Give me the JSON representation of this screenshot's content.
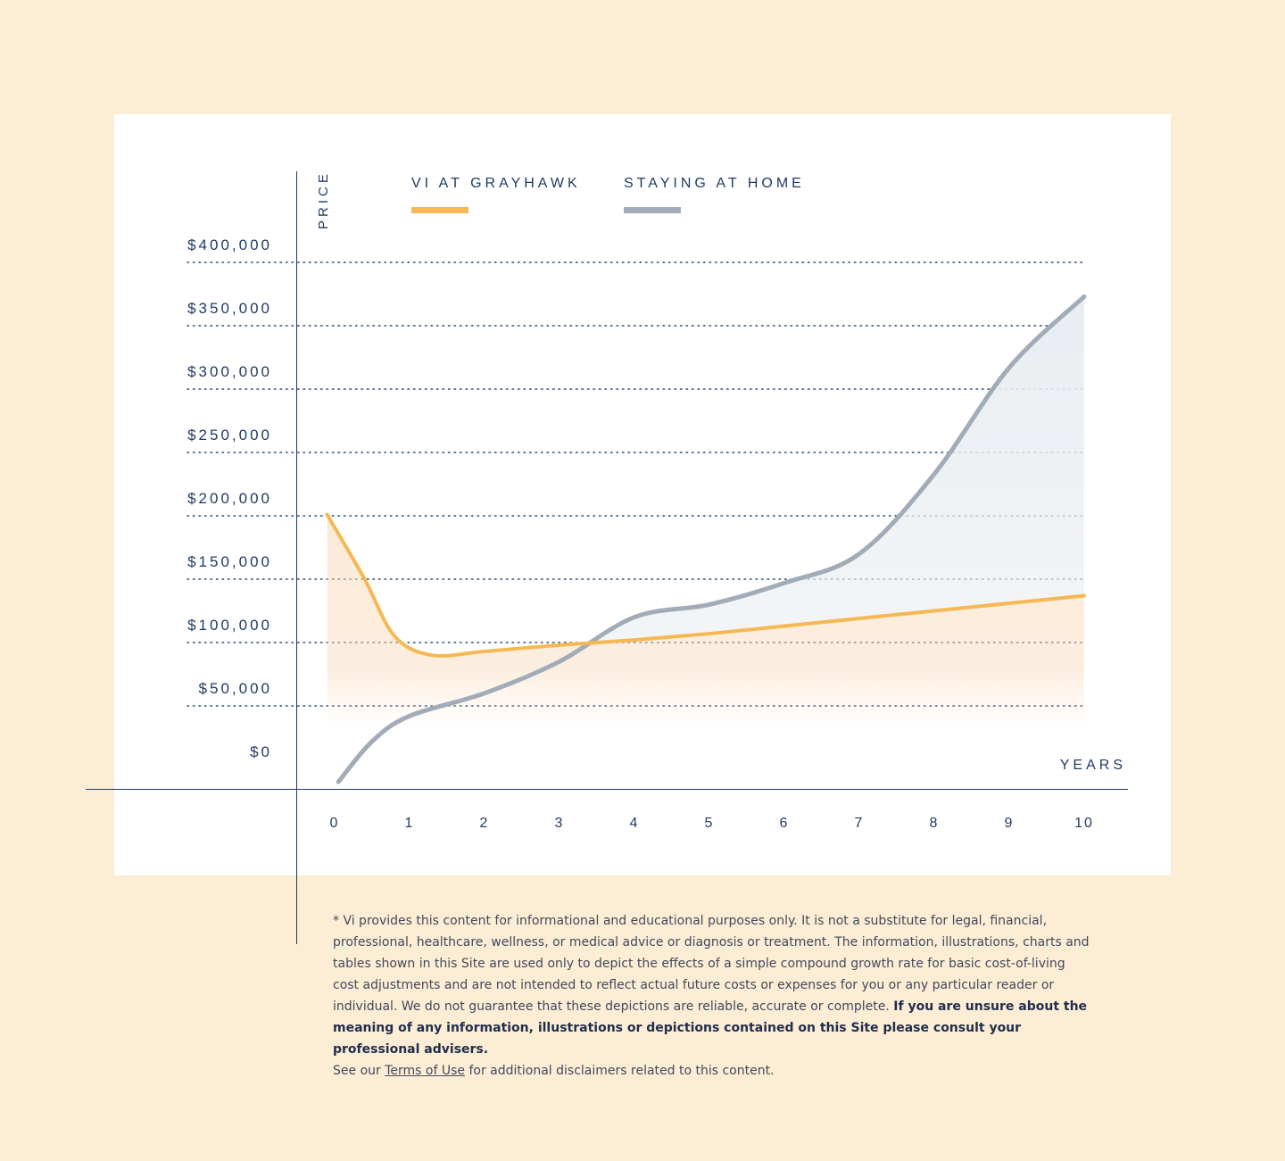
{
  "colors": {
    "page_background": "#FEEDD5",
    "card_background": "#FFFFFF",
    "axis_text": "#1F3B63",
    "vi_series": "#F6B853",
    "home_series": "#A2ACB8",
    "home_fill": "#E9EDF1",
    "vi_fill": "#F8D9B8"
  },
  "chart_data": {
    "type": "line",
    "ylabel": "PRICE",
    "xlabel": "YEARS",
    "ylim": [
      0,
      400000
    ],
    "xlim": [
      0,
      10
    ],
    "y_ticks": [
      {
        "value": 400000,
        "label": "$400,000"
      },
      {
        "value": 350000,
        "label": "$350,000"
      },
      {
        "value": 300000,
        "label": "$300,000"
      },
      {
        "value": 250000,
        "label": "$250,000"
      },
      {
        "value": 200000,
        "label": "$200,000"
      },
      {
        "value": 150000,
        "label": "$150,000"
      },
      {
        "value": 100000,
        "label": "$100,000"
      },
      {
        "value": 50000,
        "label": "$50,000"
      },
      {
        "value": 0,
        "label": "$0"
      }
    ],
    "x_ticks": [
      "0",
      "1",
      "2",
      "3",
      "4",
      "5",
      "6",
      "7",
      "8",
      "9",
      "10"
    ],
    "grid": "dotted horizontal",
    "legend_position": "top-left",
    "series": [
      {
        "name": "VI AT GRAYHAWK",
        "color": "#F6B853",
        "points": [
          [
            -0.1,
            201000
          ],
          [
            0.4,
            150000
          ],
          [
            0.8,
            105000
          ],
          [
            1.3,
            90000
          ],
          [
            2,
            93000
          ],
          [
            3,
            98000
          ],
          [
            4,
            102000
          ],
          [
            5,
            107000
          ],
          [
            6,
            113000
          ],
          [
            7,
            119000
          ],
          [
            8,
            125000
          ],
          [
            9,
            131000
          ],
          [
            10,
            137000
          ]
        ]
      },
      {
        "name": "STAYING AT HOME",
        "color": "#A2ACB8",
        "points": [
          [
            0.05,
            -10000
          ],
          [
            0.5,
            22000
          ],
          [
            1,
            42000
          ],
          [
            2,
            60000
          ],
          [
            3,
            85000
          ],
          [
            4,
            120000
          ],
          [
            5,
            130000
          ],
          [
            6,
            147000
          ],
          [
            7,
            170000
          ],
          [
            8,
            233000
          ],
          [
            9,
            317000
          ],
          [
            10,
            373000
          ]
        ]
      }
    ]
  },
  "disclaimer": {
    "text_part1": "* Vi provides this content for informational and educational purposes only. It is not a substitute for legal, financial, professional, healthcare, wellness, or medical advice or diagnosis or treatment. The information, illustrations, charts and tables shown in this Site are used only to depict the effects of a simple compound growth rate for basic cost-of-living cost adjustments and are not intended to reflect actual future costs or expenses for you or any particular reader or individual. We do not guarantee that these depictions are reliable, accurate or complete. ",
    "text_bold": "If you are unsure about the meaning of any information, illustrations or depictions contained on this Site please consult your professional advisers.",
    "see_our": "See our ",
    "terms_link": "Terms of Use",
    "suffix": " for additional disclaimers related to this content."
  }
}
